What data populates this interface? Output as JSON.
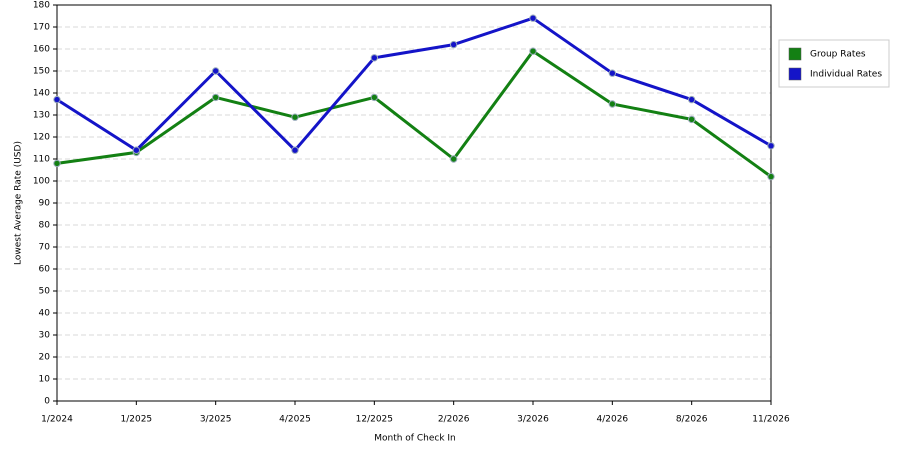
{
  "chart_data": {
    "type": "line",
    "x_label": "Month of Check In",
    "y_label": "Lowest Average Rate (USD)",
    "categories": [
      "1/2024",
      "1/2025",
      "3/2025",
      "4/2025",
      "12/2025",
      "2/2026",
      "3/2026",
      "4/2026",
      "8/2026",
      "11/2026"
    ],
    "series": [
      {
        "name": "Group Rates",
        "color": "#138013",
        "values": [
          108,
          113,
          138,
          129,
          138,
          110,
          159,
          135,
          128,
          102
        ]
      },
      {
        "name": "Individual Rates",
        "color": "#1414c8",
        "values": [
          137,
          114,
          150,
          114,
          156,
          162,
          174,
          149,
          137,
          116
        ]
      }
    ],
    "ylim": [
      0,
      180
    ],
    "yticks": [
      0,
      10,
      20,
      30,
      40,
      50,
      60,
      70,
      80,
      90,
      100,
      110,
      120,
      130,
      140,
      150,
      160,
      170,
      180
    ],
    "grid": true,
    "legend": "right"
  }
}
